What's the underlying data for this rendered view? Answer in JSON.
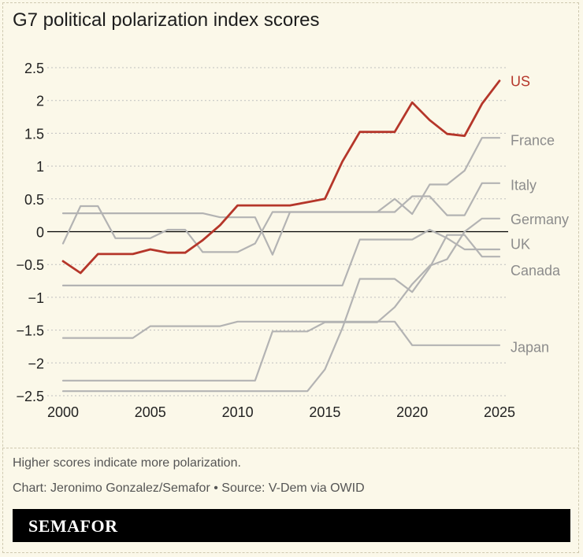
{
  "title": "G7 political polarization index scores",
  "note": "Higher scores indicate more polarization.",
  "credit": "Chart: Jeronimo Gonzalez/Semafor • Source: V-Dem via OWID",
  "brand": "SEMAFOR",
  "colors": {
    "background": "#fbf8e9",
    "highlight": "#b5362a",
    "other": "#b3b3b3",
    "label_other": "#8c8c8c",
    "axis_zero": "#000000",
    "grid": "#bfbfbf"
  },
  "chart_data": {
    "type": "line",
    "title": "G7 political polarization index scores",
    "xlabel": "",
    "ylabel": "",
    "xlim": [
      2000,
      2025
    ],
    "ylim": [
      -2.5,
      2.5
    ],
    "x_ticks": [
      2000,
      2005,
      2010,
      2015,
      2020,
      2025
    ],
    "y_ticks": [
      2.5,
      2,
      1.5,
      1,
      0.5,
      0,
      -0.5,
      -1,
      -1.5,
      -2,
      -2.5
    ],
    "y_tick_labels": [
      "2.5",
      "2",
      "1.5",
      "1",
      "0.5",
      "0",
      "−0.5",
      "−1",
      "−1.5",
      "−2",
      "−2.5"
    ],
    "grid": "horizontal dashed",
    "highlight_series": "US",
    "x": [
      2000,
      2001,
      2002,
      2003,
      2004,
      2005,
      2006,
      2007,
      2008,
      2009,
      2010,
      2011,
      2012,
      2013,
      2014,
      2015,
      2016,
      2017,
      2018,
      2019,
      2020,
      2021,
      2022,
      2023,
      2024,
      2025
    ],
    "series": [
      {
        "name": "US",
        "values": [
          -0.45,
          -0.63,
          -0.34,
          -0.34,
          -0.34,
          -0.27,
          -0.32,
          -0.32,
          -0.13,
          0.1,
          0.4,
          0.4,
          0.4,
          0.4,
          0.45,
          0.5,
          1.07,
          1.52,
          1.52,
          1.52,
          1.97,
          1.7,
          1.49,
          1.46,
          1.95,
          2.3
        ]
      },
      {
        "name": "France",
        "values": [
          0.28,
          0.28,
          0.28,
          0.28,
          0.28,
          0.28,
          0.28,
          0.28,
          0.28,
          0.22,
          0.22,
          0.22,
          -0.35,
          0.3,
          0.3,
          0.3,
          0.3,
          0.3,
          0.3,
          0.5,
          0.27,
          0.72,
          0.72,
          0.93,
          1.43,
          1.43
        ]
      },
      {
        "name": "Italy",
        "values": [
          -0.18,
          0.39,
          0.39,
          -0.1,
          -0.1,
          -0.1,
          0.03,
          0.03,
          -0.31,
          -0.31,
          -0.31,
          -0.18,
          0.3,
          0.3,
          0.3,
          0.3,
          0.3,
          0.3,
          0.3,
          0.3,
          0.54,
          0.54,
          0.25,
          0.25,
          0.74,
          0.74
        ]
      },
      {
        "name": "Germany",
        "values": [
          -2.27,
          -2.27,
          -2.27,
          -2.27,
          -2.27,
          -2.27,
          -2.27,
          -2.27,
          -2.27,
          -2.27,
          -2.27,
          -2.27,
          -1.52,
          -1.52,
          -1.52,
          -1.38,
          -1.38,
          -1.38,
          -1.38,
          -1.15,
          -0.8,
          -0.52,
          -0.42,
          0.0,
          0.2,
          0.2
        ]
      },
      {
        "name": "UK",
        "values": [
          -0.82,
          -0.82,
          -0.82,
          -0.82,
          -0.82,
          -0.82,
          -0.82,
          -0.82,
          -0.82,
          -0.82,
          -0.82,
          -0.82,
          -0.82,
          -0.82,
          -0.82,
          -0.82,
          -0.82,
          -0.12,
          -0.12,
          -0.12,
          -0.12,
          0.03,
          -0.1,
          -0.27,
          -0.27,
          -0.27
        ]
      },
      {
        "name": "Canada",
        "values": [
          -2.43,
          -2.43,
          -2.43,
          -2.43,
          -2.43,
          -2.43,
          -2.43,
          -2.43,
          -2.43,
          -2.43,
          -2.43,
          -2.43,
          -2.43,
          -2.43,
          -2.43,
          -2.1,
          -1.47,
          -0.72,
          -0.72,
          -0.72,
          -0.92,
          -0.55,
          -0.05,
          -0.05,
          -0.38,
          -0.38
        ]
      },
      {
        "name": "Japan",
        "values": [
          -1.62,
          -1.62,
          -1.62,
          -1.62,
          -1.62,
          -1.44,
          -1.44,
          -1.44,
          -1.44,
          -1.44,
          -1.37,
          -1.37,
          -1.37,
          -1.37,
          -1.37,
          -1.37,
          -1.37,
          -1.37,
          -1.37,
          -1.37,
          -1.73,
          -1.73,
          -1.73,
          -1.73,
          -1.73,
          -1.73
        ]
      }
    ]
  }
}
